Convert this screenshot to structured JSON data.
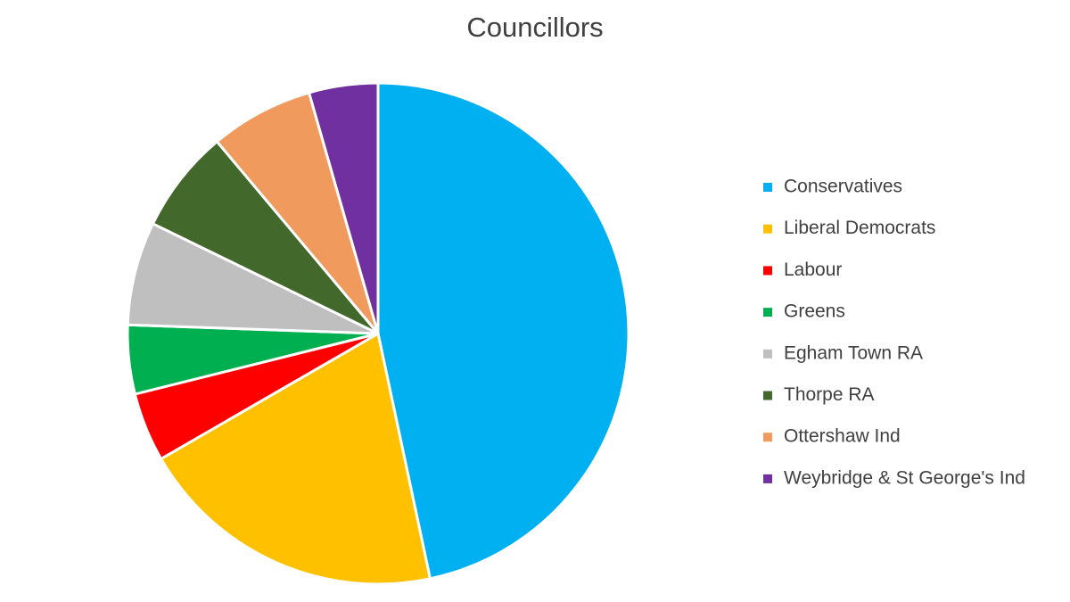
{
  "chart_data": {
    "type": "pie",
    "title": "Councillors",
    "categories": [
      "Conservatives",
      "Liberal Democrats",
      "Labour",
      "Greens",
      "Egham Town RA",
      "Thorpe RA",
      "Ottershaw Ind",
      "Weybridge & St George's Ind"
    ],
    "values": [
      21,
      9,
      2,
      2,
      3,
      3,
      3,
      2
    ],
    "colors": [
      "#00b0f0",
      "#ffc000",
      "#ff0000",
      "#00b050",
      "#bfbfbf",
      "#43682b",
      "#f19a5e",
      "#7030a0"
    ],
    "legend": "right"
  }
}
